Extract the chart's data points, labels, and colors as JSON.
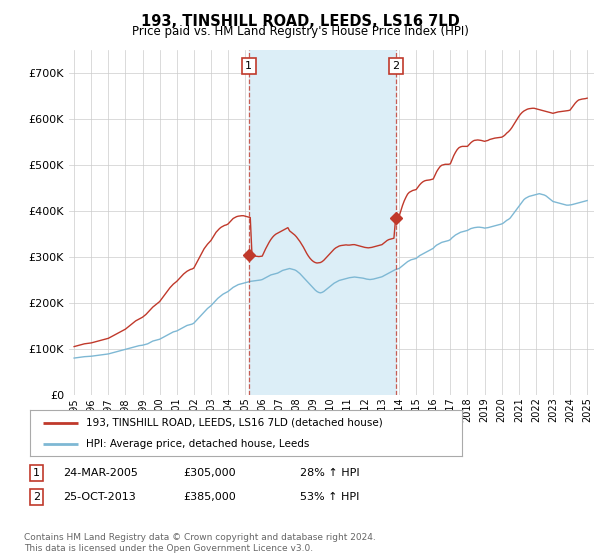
{
  "title": "193, TINSHILL ROAD, LEEDS, LS16 7LD",
  "subtitle": "Price paid vs. HM Land Registry's House Price Index (HPI)",
  "legend_line1": "193, TINSHILL ROAD, LEEDS, LS16 7LD (detached house)",
  "legend_line2": "HPI: Average price, detached house, Leeds",
  "footnote": "Contains HM Land Registry data © Crown copyright and database right 2024.\nThis data is licensed under the Open Government Licence v3.0.",
  "transaction1_label": "1",
  "transaction1_date": "24-MAR-2005",
  "transaction1_price": "£305,000",
  "transaction1_hpi": "28% ↑ HPI",
  "transaction1_year": 2005.21,
  "transaction1_value": 305000,
  "transaction2_label": "2",
  "transaction2_date": "25-OCT-2013",
  "transaction2_price": "£385,000",
  "transaction2_hpi": "53% ↑ HPI",
  "transaction2_year": 2013.81,
  "transaction2_value": 385000,
  "hpi_color": "#7eb8d4",
  "price_color": "#c0392b",
  "vline_color": "#c0392b",
  "shade_color": "#dceef7",
  "background_color": "#ffffff",
  "grid_color": "#cccccc",
  "ylim": [
    0,
    750000
  ],
  "yticks": [
    0,
    100000,
    200000,
    300000,
    400000,
    500000,
    600000,
    700000
  ],
  "hpi_x": [
    1995.0,
    1995.1,
    1995.2,
    1995.3,
    1995.4,
    1995.5,
    1995.6,
    1995.7,
    1995.8,
    1995.9,
    1996.0,
    1996.1,
    1996.2,
    1996.3,
    1996.4,
    1996.5,
    1996.6,
    1996.7,
    1996.8,
    1996.9,
    1997.0,
    1997.1,
    1997.2,
    1997.3,
    1997.4,
    1997.5,
    1997.6,
    1997.7,
    1997.8,
    1997.9,
    1998.0,
    1998.1,
    1998.2,
    1998.3,
    1998.4,
    1998.5,
    1998.6,
    1998.7,
    1998.8,
    1998.9,
    1999.0,
    1999.1,
    1999.2,
    1999.3,
    1999.4,
    1999.5,
    1999.6,
    1999.7,
    1999.8,
    1999.9,
    2000.0,
    2000.1,
    2000.2,
    2000.3,
    2000.4,
    2000.5,
    2000.6,
    2000.7,
    2000.8,
    2000.9,
    2001.0,
    2001.1,
    2001.2,
    2001.3,
    2001.4,
    2001.5,
    2001.6,
    2001.7,
    2001.8,
    2001.9,
    2002.0,
    2002.1,
    2002.2,
    2002.3,
    2002.4,
    2002.5,
    2002.6,
    2002.7,
    2002.8,
    2002.9,
    2003.0,
    2003.1,
    2003.2,
    2003.3,
    2003.4,
    2003.5,
    2003.6,
    2003.7,
    2003.8,
    2003.9,
    2004.0,
    2004.1,
    2004.2,
    2004.3,
    2004.4,
    2004.5,
    2004.6,
    2004.7,
    2004.8,
    2004.9,
    2005.0,
    2005.1,
    2005.2,
    2005.3,
    2005.4,
    2005.5,
    2005.6,
    2005.7,
    2005.8,
    2005.9,
    2006.0,
    2006.1,
    2006.2,
    2006.3,
    2006.4,
    2006.5,
    2006.6,
    2006.7,
    2006.8,
    2006.9,
    2007.0,
    2007.1,
    2007.2,
    2007.3,
    2007.4,
    2007.5,
    2007.6,
    2007.7,
    2007.8,
    2007.9,
    2008.0,
    2008.1,
    2008.2,
    2008.3,
    2008.4,
    2008.5,
    2008.6,
    2008.7,
    2008.8,
    2008.9,
    2009.0,
    2009.1,
    2009.2,
    2009.3,
    2009.4,
    2009.5,
    2009.6,
    2009.7,
    2009.8,
    2009.9,
    2010.0,
    2010.1,
    2010.2,
    2010.3,
    2010.4,
    2010.5,
    2010.6,
    2010.7,
    2010.8,
    2010.9,
    2011.0,
    2011.1,
    2011.2,
    2011.3,
    2011.4,
    2011.5,
    2011.6,
    2011.7,
    2011.8,
    2011.9,
    2012.0,
    2012.1,
    2012.2,
    2012.3,
    2012.4,
    2012.5,
    2012.6,
    2012.7,
    2012.8,
    2012.9,
    2013.0,
    2013.1,
    2013.2,
    2013.3,
    2013.4,
    2013.5,
    2013.6,
    2013.7,
    2013.8,
    2013.9,
    2014.0,
    2014.1,
    2014.2,
    2014.3,
    2014.4,
    2014.5,
    2014.6,
    2014.7,
    2014.8,
    2014.9,
    2015.0,
    2015.1,
    2015.2,
    2015.3,
    2015.4,
    2015.5,
    2015.6,
    2015.7,
    2015.8,
    2015.9,
    2016.0,
    2016.1,
    2016.2,
    2016.3,
    2016.4,
    2016.5,
    2016.6,
    2016.7,
    2016.8,
    2016.9,
    2017.0,
    2017.1,
    2017.2,
    2017.3,
    2017.4,
    2017.5,
    2017.6,
    2017.7,
    2017.8,
    2017.9,
    2018.0,
    2018.1,
    2018.2,
    2018.3,
    2018.4,
    2018.5,
    2018.6,
    2018.7,
    2018.8,
    2018.9,
    2019.0,
    2019.1,
    2019.2,
    2019.3,
    2019.4,
    2019.5,
    2019.6,
    2019.7,
    2019.8,
    2019.9,
    2020.0,
    2020.1,
    2020.2,
    2020.3,
    2020.4,
    2020.5,
    2020.6,
    2020.7,
    2020.8,
    2020.9,
    2021.0,
    2021.1,
    2021.2,
    2021.3,
    2021.4,
    2021.5,
    2021.6,
    2021.7,
    2021.8,
    2021.9,
    2022.0,
    2022.1,
    2022.2,
    2022.3,
    2022.4,
    2022.5,
    2022.6,
    2022.7,
    2022.8,
    2022.9,
    2023.0,
    2023.1,
    2023.2,
    2023.3,
    2023.4,
    2023.5,
    2023.6,
    2023.7,
    2023.8,
    2023.9,
    2024.0,
    2024.1,
    2024.2,
    2024.3,
    2024.4,
    2024.5,
    2024.6,
    2024.7,
    2024.8,
    2024.9,
    2025.0
  ],
  "hpi_y": [
    80000,
    80500,
    81000,
    81500,
    82000,
    82500,
    83000,
    83200,
    83400,
    83600,
    84000,
    84500,
    85000,
    85500,
    86000,
    86500,
    87000,
    87500,
    88000,
    88500,
    89000,
    90000,
    91000,
    92000,
    93000,
    94000,
    95000,
    96000,
    97000,
    98000,
    99000,
    100000,
    101000,
    102000,
    103000,
    104000,
    105000,
    106000,
    107000,
    107500,
    108000,
    109000,
    110000,
    111000,
    113000,
    115000,
    117000,
    118000,
    119000,
    120000,
    121000,
    123000,
    125000,
    127000,
    129000,
    131000,
    133000,
    135000,
    137000,
    138000,
    139000,
    141000,
    143000,
    145000,
    147000,
    149000,
    151000,
    152000,
    153000,
    154000,
    156000,
    160000,
    164000,
    168000,
    172000,
    176000,
    180000,
    184000,
    188000,
    191000,
    194000,
    198000,
    202000,
    206000,
    210000,
    213000,
    216000,
    219000,
    221000,
    223000,
    225000,
    228000,
    231000,
    234000,
    236000,
    238000,
    240000,
    241000,
    242000,
    243000,
    244000,
    245000,
    246000,
    247000,
    247500,
    248000,
    248500,
    249000,
    249500,
    250000,
    251000,
    253000,
    255000,
    257000,
    259000,
    261000,
    262000,
    263000,
    264000,
    265000,
    267000,
    269000,
    271000,
    272000,
    273000,
    274000,
    275000,
    274000,
    273000,
    272000,
    270000,
    267000,
    264000,
    260000,
    256000,
    252000,
    248000,
    244000,
    240000,
    236000,
    232000,
    228000,
    225000,
    223000,
    222000,
    223000,
    225000,
    228000,
    231000,
    234000,
    237000,
    240000,
    243000,
    245000,
    247000,
    249000,
    250000,
    251000,
    252000,
    253000,
    254000,
    255000,
    255500,
    256000,
    256500,
    256000,
    255500,
    255000,
    254500,
    254000,
    253000,
    252000,
    251500,
    251000,
    251500,
    252000,
    253000,
    254000,
    255000,
    256000,
    257000,
    259000,
    261000,
    263000,
    265000,
    267000,
    269000,
    271000,
    273000,
    274000,
    275000,
    278000,
    281000,
    284000,
    287000,
    290000,
    292000,
    294000,
    295000,
    296000,
    297000,
    300000,
    303000,
    305000,
    307000,
    309000,
    311000,
    313000,
    315000,
    317000,
    319000,
    323000,
    326000,
    328000,
    330000,
    332000,
    333000,
    334000,
    335000,
    336000,
    338000,
    342000,
    345000,
    348000,
    350000,
    352000,
    354000,
    355000,
    356000,
    357000,
    358000,
    360000,
    362000,
    363000,
    364000,
    364500,
    365000,
    365000,
    364500,
    364000,
    363000,
    363500,
    364000,
    365000,
    366000,
    367000,
    368000,
    369000,
    370000,
    371000,
    372000,
    374000,
    377000,
    380000,
    382000,
    385000,
    390000,
    395000,
    400000,
    405000,
    410000,
    415000,
    420000,
    425000,
    428000,
    430000,
    432000,
    433000,
    434000,
    435000,
    436000,
    437000,
    438000,
    437000,
    436000,
    435000,
    433000,
    430000,
    427000,
    424000,
    421000,
    420000,
    419000,
    418000,
    417000,
    416000,
    415000,
    414000,
    413000,
    413000,
    413500,
    414000,
    415000,
    416000,
    417000,
    418000,
    419000,
    420000,
    421000,
    422000,
    423000
  ],
  "price_x": [
    1995.0,
    1995.1,
    1995.2,
    1995.3,
    1995.4,
    1995.5,
    1995.6,
    1995.7,
    1995.8,
    1995.9,
    1996.0,
    1996.1,
    1996.2,
    1996.3,
    1996.4,
    1996.5,
    1996.6,
    1996.7,
    1996.8,
    1996.9,
    1997.0,
    1997.1,
    1997.2,
    1997.3,
    1997.4,
    1997.5,
    1997.6,
    1997.7,
    1997.8,
    1997.9,
    1998.0,
    1998.1,
    1998.2,
    1998.3,
    1998.4,
    1998.5,
    1998.6,
    1998.7,
    1998.8,
    1998.9,
    1999.0,
    1999.1,
    1999.2,
    1999.3,
    1999.4,
    1999.5,
    1999.6,
    1999.7,
    1999.8,
    1999.9,
    2000.0,
    2000.1,
    2000.2,
    2000.3,
    2000.4,
    2000.5,
    2000.6,
    2000.7,
    2000.8,
    2000.9,
    2001.0,
    2001.1,
    2001.2,
    2001.3,
    2001.4,
    2001.5,
    2001.6,
    2001.7,
    2001.8,
    2001.9,
    2002.0,
    2002.1,
    2002.2,
    2002.3,
    2002.4,
    2002.5,
    2002.6,
    2002.7,
    2002.8,
    2002.9,
    2003.0,
    2003.1,
    2003.2,
    2003.3,
    2003.4,
    2003.5,
    2003.6,
    2003.7,
    2003.8,
    2003.9,
    2004.0,
    2004.1,
    2004.2,
    2004.3,
    2004.4,
    2004.5,
    2004.6,
    2004.7,
    2004.8,
    2004.9,
    2005.0,
    2005.1,
    2005.2,
    2005.3,
    2005.4,
    2005.5,
    2005.6,
    2005.7,
    2005.8,
    2005.9,
    2006.0,
    2006.1,
    2006.2,
    2006.3,
    2006.4,
    2006.5,
    2006.6,
    2006.7,
    2006.8,
    2006.9,
    2007.0,
    2007.1,
    2007.2,
    2007.3,
    2007.4,
    2007.5,
    2007.6,
    2007.7,
    2007.8,
    2007.9,
    2008.0,
    2008.1,
    2008.2,
    2008.3,
    2008.4,
    2008.5,
    2008.6,
    2008.7,
    2008.8,
    2008.9,
    2009.0,
    2009.1,
    2009.2,
    2009.3,
    2009.4,
    2009.5,
    2009.6,
    2009.7,
    2009.8,
    2009.9,
    2010.0,
    2010.1,
    2010.2,
    2010.3,
    2010.4,
    2010.5,
    2010.6,
    2010.7,
    2010.8,
    2010.9,
    2011.0,
    2011.1,
    2011.2,
    2011.3,
    2011.4,
    2011.5,
    2011.6,
    2011.7,
    2011.8,
    2011.9,
    2012.0,
    2012.1,
    2012.2,
    2012.3,
    2012.4,
    2012.5,
    2012.6,
    2012.7,
    2012.8,
    2012.9,
    2013.0,
    2013.1,
    2013.2,
    2013.3,
    2013.4,
    2013.5,
    2013.6,
    2013.7,
    2013.8,
    2013.9,
    2014.0,
    2014.1,
    2014.2,
    2014.3,
    2014.4,
    2014.5,
    2014.6,
    2014.7,
    2014.8,
    2014.9,
    2015.0,
    2015.1,
    2015.2,
    2015.3,
    2015.4,
    2015.5,
    2015.6,
    2015.7,
    2015.8,
    2015.9,
    2016.0,
    2016.1,
    2016.2,
    2016.3,
    2016.4,
    2016.5,
    2016.6,
    2016.7,
    2016.8,
    2016.9,
    2017.0,
    2017.1,
    2017.2,
    2017.3,
    2017.4,
    2017.5,
    2017.6,
    2017.7,
    2017.8,
    2017.9,
    2018.0,
    2018.1,
    2018.2,
    2018.3,
    2018.4,
    2018.5,
    2018.6,
    2018.7,
    2018.8,
    2018.9,
    2019.0,
    2019.1,
    2019.2,
    2019.3,
    2019.4,
    2019.5,
    2019.6,
    2019.7,
    2019.8,
    2019.9,
    2020.0,
    2020.1,
    2020.2,
    2020.3,
    2020.4,
    2020.5,
    2020.6,
    2020.7,
    2020.8,
    2020.9,
    2021.0,
    2021.1,
    2021.2,
    2021.3,
    2021.4,
    2021.5,
    2021.6,
    2021.7,
    2021.8,
    2021.9,
    2022.0,
    2022.1,
    2022.2,
    2022.3,
    2022.4,
    2022.5,
    2022.6,
    2022.7,
    2022.8,
    2022.9,
    2023.0,
    2023.1,
    2023.2,
    2023.3,
    2023.4,
    2023.5,
    2023.6,
    2023.7,
    2023.8,
    2023.9,
    2024.0,
    2024.1,
    2024.2,
    2024.3,
    2024.4,
    2024.5,
    2024.6,
    2024.7,
    2024.8,
    2024.9,
    2025.0
  ],
  "price_y": [
    105000,
    106000,
    107000,
    108000,
    109000,
    110000,
    111000,
    111500,
    112000,
    112500,
    113000,
    114000,
    115000,
    116000,
    117000,
    118000,
    119000,
    120000,
    121000,
    122000,
    123000,
    125000,
    127000,
    129000,
    131000,
    133000,
    135000,
    137000,
    139000,
    141000,
    143000,
    146000,
    149000,
    152000,
    155000,
    158000,
    161000,
    163000,
    165000,
    167000,
    169000,
    172000,
    175000,
    179000,
    183000,
    187000,
    191000,
    194000,
    197000,
    200000,
    203000,
    208000,
    213000,
    218000,
    223000,
    228000,
    233000,
    237000,
    241000,
    244000,
    247000,
    251000,
    255000,
    259000,
    263000,
    266000,
    269000,
    271000,
    273000,
    274000,
    276000,
    283000,
    290000,
    297000,
    304000,
    311000,
    318000,
    323000,
    328000,
    332000,
    336000,
    342000,
    348000,
    354000,
    358000,
    362000,
    365000,
    367000,
    369000,
    370000,
    372000,
    376000,
    380000,
    384000,
    386000,
    388000,
    389000,
    389500,
    390000,
    390000,
    389000,
    388000,
    387000,
    386000,
    305000,
    303000,
    302000,
    301500,
    301000,
    301500,
    302000,
    310000,
    318000,
    325000,
    332000,
    338000,
    343000,
    347000,
    350000,
    352000,
    354000,
    356000,
    358000,
    360000,
    362000,
    364000,
    357000,
    354000,
    351000,
    348000,
    344000,
    339000,
    334000,
    328000,
    322000,
    315000,
    308000,
    302000,
    297000,
    293000,
    290000,
    288000,
    287000,
    287500,
    288000,
    290000,
    293000,
    297000,
    301000,
    305000,
    309000,
    313000,
    317000,
    320000,
    322000,
    324000,
    325000,
    325500,
    326000,
    326500,
    326000,
    326000,
    326500,
    327000,
    327000,
    326000,
    325000,
    324000,
    323000,
    322000,
    321000,
    320500,
    320000,
    320500,
    321000,
    322000,
    323000,
    324000,
    325000,
    326000,
    327000,
    330000,
    333000,
    336000,
    338000,
    339000,
    340000,
    341000,
    385000,
    386000,
    388000,
    400000,
    412000,
    422000,
    430000,
    437000,
    441000,
    443000,
    445000,
    446000,
    447000,
    452000,
    457000,
    461000,
    464000,
    466000,
    467000,
    467500,
    468000,
    469000,
    470000,
    478000,
    486000,
    492000,
    497000,
    500000,
    501000,
    502000,
    502000,
    502000,
    503000,
    512000,
    521000,
    528000,
    534000,
    538000,
    540000,
    541000,
    541000,
    541000,
    541000,
    545000,
    549000,
    552000,
    554000,
    554500,
    555000,
    554500,
    554000,
    553000,
    552000,
    553000,
    554000,
    556000,
    557000,
    558000,
    559000,
    559500,
    560000,
    560500,
    561000,
    563000,
    566000,
    570000,
    573000,
    577000,
    582000,
    588000,
    594000,
    600000,
    606000,
    611000,
    615000,
    618000,
    620000,
    622000,
    623000,
    623500,
    624000,
    624000,
    623000,
    622000,
    621000,
    620000,
    619000,
    618000,
    617000,
    616000,
    615000,
    614000,
    613000,
    614000,
    615000,
    616000,
    616500,
    617000,
    617500,
    618000,
    618500,
    619000,
    620000,
    625000,
    630000,
    635000,
    639000,
    642000,
    643000,
    644000,
    644500,
    645000,
    646000
  ],
  "xtick_years": [
    1995,
    1996,
    1997,
    1998,
    1999,
    2000,
    2001,
    2002,
    2003,
    2004,
    2005,
    2006,
    2007,
    2008,
    2009,
    2010,
    2011,
    2012,
    2013,
    2014,
    2015,
    2016,
    2017,
    2018,
    2019,
    2020,
    2021,
    2022,
    2023,
    2024,
    2025
  ]
}
